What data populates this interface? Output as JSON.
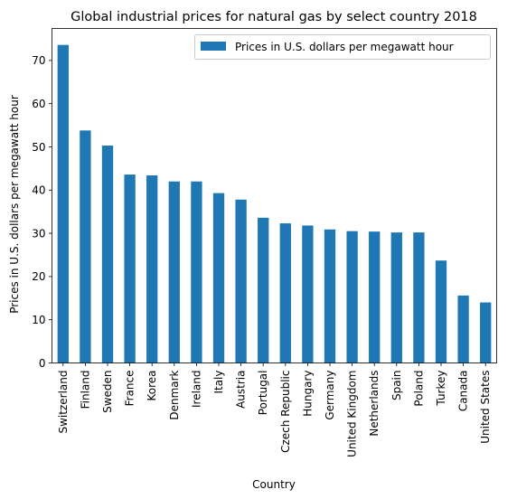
{
  "chart_data": {
    "type": "bar",
    "title": "Global industrial prices for natural gas by select country 2018",
    "xlabel": "Country",
    "ylabel": "Prices in U.S. dollars per megawatt hour",
    "ylim": [
      0,
      77.4
    ],
    "yticks": [
      0,
      10,
      20,
      30,
      40,
      50,
      60,
      70
    ],
    "grid": false,
    "legend_position": "top-right",
    "bar_color": "#1f77b4",
    "categories": [
      "Switzerland",
      "Finland",
      "Sweden",
      "France",
      "Korea",
      "Denmark",
      "Ireland",
      "Italy",
      "Austria",
      "Portugal",
      "Czech Republic",
      "Hungary",
      "Germany",
      "United Kingdom",
      "Netherlands",
      "Spain",
      "Poland",
      "Turkey",
      "Canada",
      "United States"
    ],
    "series": [
      {
        "name": "Prices in U.S. dollars per megawatt hour",
        "values": [
          73.6,
          53.8,
          50.3,
          43.6,
          43.4,
          42.0,
          42.0,
          39.3,
          37.8,
          33.6,
          32.3,
          31.8,
          30.9,
          30.5,
          30.4,
          30.2,
          30.2,
          23.7,
          15.6,
          14.0
        ]
      }
    ]
  }
}
